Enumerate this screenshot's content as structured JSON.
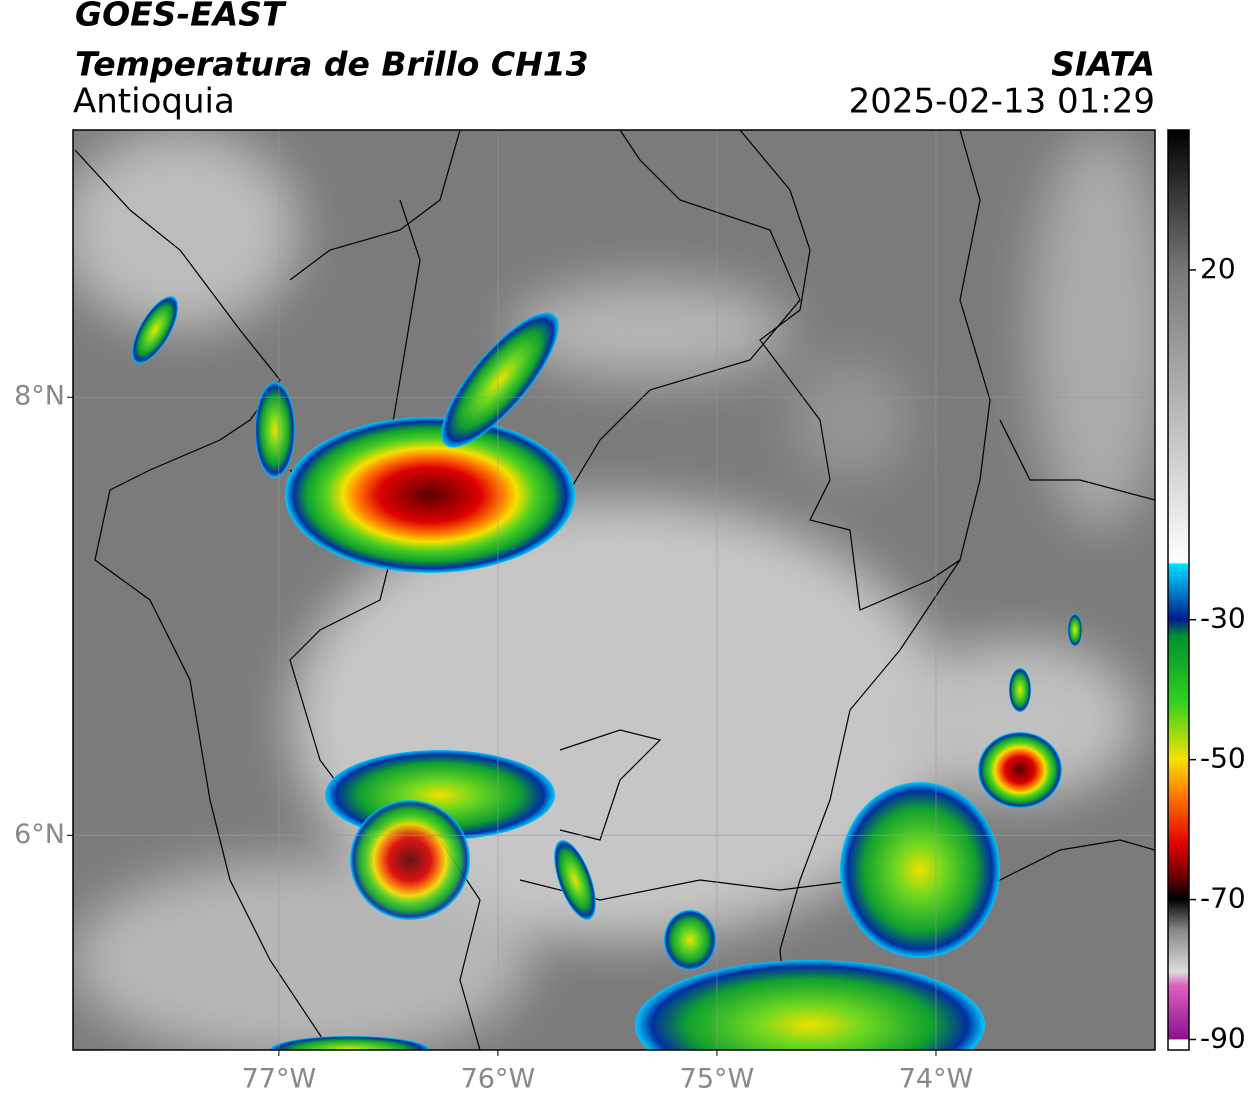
{
  "header": {
    "title": "GOES-EAST",
    "subtitle": "Temperatura de Brillo CH13",
    "region": "Antioquia",
    "source": "SIATA",
    "datetime": "2025-02-13 01:29"
  },
  "map": {
    "lonlim": [
      -77.94,
      -73.0
    ],
    "latlim": [
      5.02,
      9.22
    ],
    "lonticks": [
      {
        "value": -77,
        "label": "77°W"
      },
      {
        "value": -76,
        "label": "76°W"
      },
      {
        "value": -75,
        "label": "75°W"
      },
      {
        "value": -74,
        "label": "74°W"
      }
    ],
    "latticks": [
      {
        "value": 6,
        "label": "6°N"
      },
      {
        "value": 8,
        "label": "8°N"
      }
    ],
    "grid": true
  },
  "colorbar": {
    "lim": [
      -91.5,
      40
    ],
    "ticks": [
      20,
      -30,
      -50,
      -70,
      -90
    ]
  }
}
